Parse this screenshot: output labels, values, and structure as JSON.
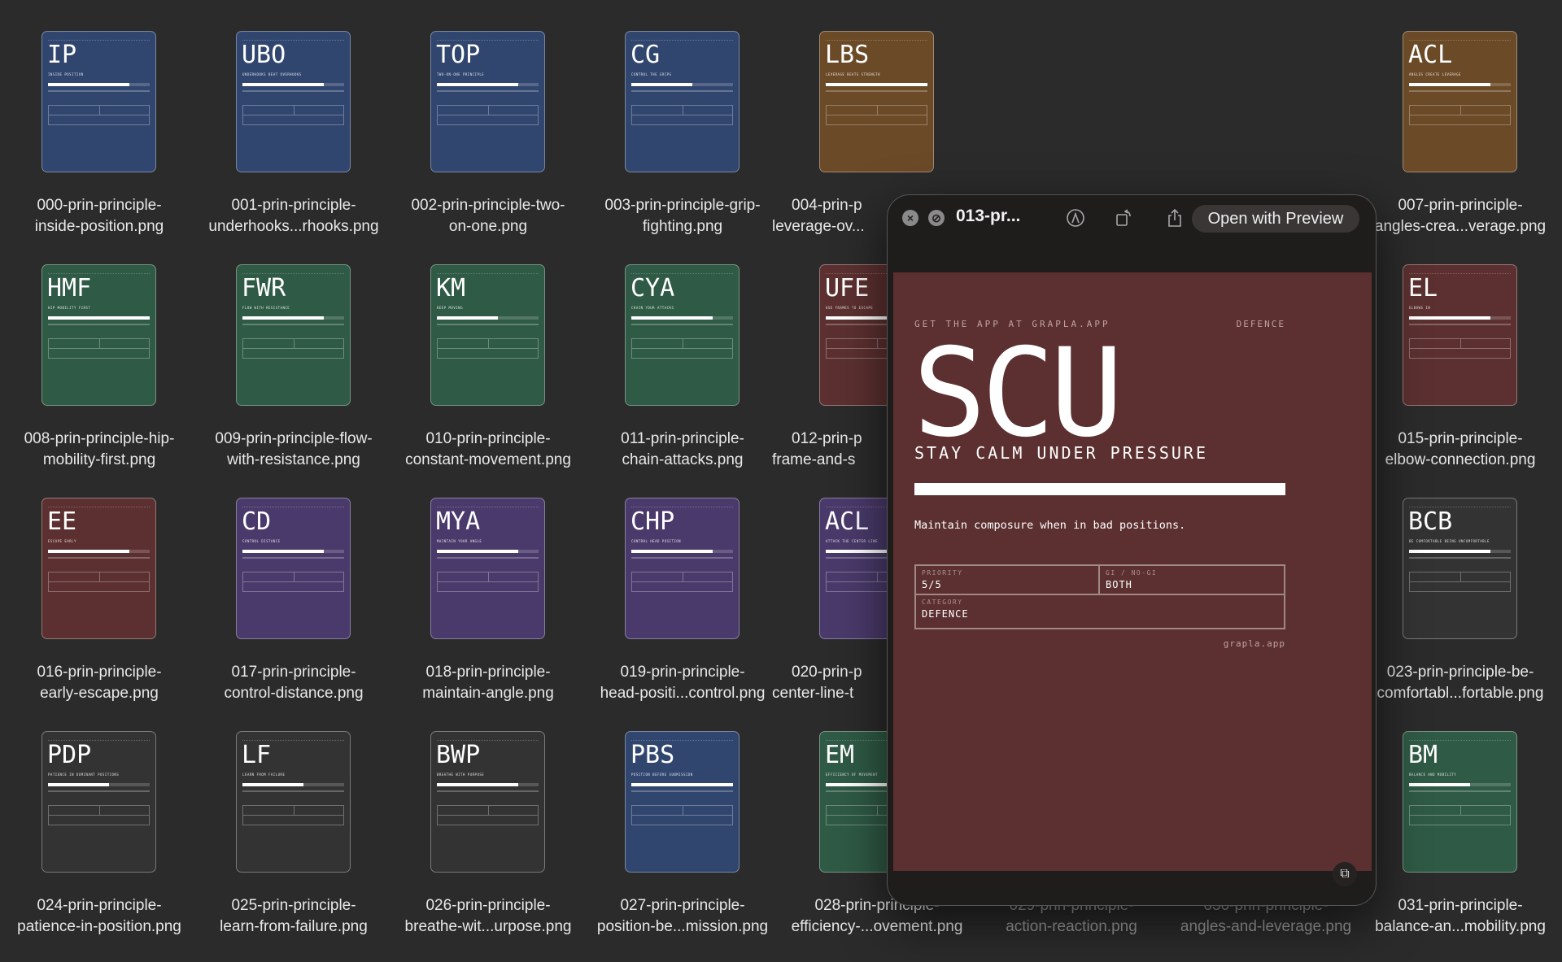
{
  "files": [
    {
      "col": 0,
      "row": 0,
      "abbr": "IP",
      "subtitle": "INSIDE POSITION",
      "color": "#31466f",
      "fill": 0.8,
      "label": [
        "000-prin-principle-",
        "inside-position.png"
      ]
    },
    {
      "col": 1,
      "row": 0,
      "abbr": "UBO",
      "subtitle": "UNDERHOOKS BEAT OVERHOOKS",
      "color": "#31466f",
      "fill": 0.8,
      "label": [
        "001-prin-principle-",
        "underhooks...rhooks.png"
      ]
    },
    {
      "col": 2,
      "row": 0,
      "abbr": "TOP",
      "subtitle": "TWO-ON-ONE PRINCIPLE",
      "color": "#31466f",
      "fill": 0.8,
      "label": [
        "002-prin-principle-two-",
        "on-one.png"
      ]
    },
    {
      "col": 3,
      "row": 0,
      "abbr": "CG",
      "subtitle": "CONTROL THE GRIPS",
      "color": "#31466f",
      "fill": 0.6,
      "label": [
        "003-prin-principle-grip-",
        "fighting.png"
      ]
    },
    {
      "col": 4,
      "row": 0,
      "abbr": "LBS",
      "subtitle": "LEVERAGE BEATS STRENGTH",
      "color": "#6b4a28",
      "fill": 1.0,
      "label": [
        "004-prin-p",
        "leverage-ov..."
      ],
      "clipped": true
    },
    {
      "col": 7,
      "row": 0,
      "abbr": "ACL",
      "subtitle": "ANGLES CREATE LEVERAGE",
      "color": "#6b4a28",
      "fill": 0.8,
      "label": [
        "007-prin-principle-",
        "angles-crea...verage.png"
      ]
    },
    {
      "col": 0,
      "row": 1,
      "abbr": "HMF",
      "subtitle": "HIP MOBILITY FIRST",
      "color": "#2f5a45",
      "fill": 1.0,
      "label": [
        "008-prin-principle-hip-",
        "mobility-first.png"
      ]
    },
    {
      "col": 1,
      "row": 1,
      "abbr": "FWR",
      "subtitle": "FLOW WITH RESISTANCE",
      "color": "#2f5a45",
      "fill": 0.8,
      "label": [
        "009-prin-principle-flow-",
        "with-resistance.png"
      ]
    },
    {
      "col": 2,
      "row": 1,
      "abbr": "KM",
      "subtitle": "KEEP MOVING",
      "color": "#2f5a45",
      "fill": 0.6,
      "label": [
        "010-prin-principle-",
        "constant-movement.png"
      ]
    },
    {
      "col": 3,
      "row": 1,
      "abbr": "CYA",
      "subtitle": "CHAIN YOUR ATTACKS",
      "color": "#2f5a45",
      "fill": 0.8,
      "label": [
        "011-prin-principle-",
        "chain-attacks.png"
      ]
    },
    {
      "col": 4,
      "row": 1,
      "abbr": "UFE",
      "subtitle": "USE FRAMES TO ESCAPE",
      "color": "#5c3030",
      "fill": 1.0,
      "label": [
        "012-prin-p",
        "frame-and-s"
      ],
      "clipped": true
    },
    {
      "col": 7,
      "row": 1,
      "abbr": "EL",
      "subtitle": "ELBOWS IN",
      "color": "#5c3030",
      "fill": 0.8,
      "label": [
        "015-prin-principle-",
        "elbow-connection.png"
      ]
    },
    {
      "col": 0,
      "row": 2,
      "abbr": "EE",
      "subtitle": "ESCAPE EARLY",
      "color": "#5c3030",
      "fill": 0.8,
      "label": [
        "016-prin-principle-",
        "early-escape.png"
      ]
    },
    {
      "col": 1,
      "row": 2,
      "abbr": "CD",
      "subtitle": "CONTROL DISTANCE",
      "color": "#4a3a6b",
      "fill": 0.8,
      "label": [
        "017-prin-principle-",
        "control-distance.png"
      ]
    },
    {
      "col": 2,
      "row": 2,
      "abbr": "MYA",
      "subtitle": "MAINTAIN YOUR ANGLE",
      "color": "#4a3a6b",
      "fill": 0.8,
      "label": [
        "018-prin-principle-",
        "maintain-angle.png"
      ]
    },
    {
      "col": 3,
      "row": 2,
      "abbr": "CHP",
      "subtitle": "CONTROL HEAD POSITION",
      "color": "#4a3a6b",
      "fill": 0.8,
      "label": [
        "019-prin-principle-",
        "head-positi...control.png"
      ]
    },
    {
      "col": 4,
      "row": 2,
      "abbr": "ACL",
      "subtitle": "ATTACK THE CENTER LINE",
      "color": "#4a3a6b",
      "fill": 1.0,
      "label": [
        "020-prin-p",
        "center-line-t"
      ],
      "clipped": true
    },
    {
      "col": 7,
      "row": 2,
      "abbr": "BCB",
      "subtitle": "BE COMFORTABLE BEING UNCOMFORTABLE",
      "color": "#333333",
      "fill": 0.8,
      "label": [
        "023-prin-principle-be-",
        "comfortabl...fortable.png"
      ]
    },
    {
      "col": 0,
      "row": 3,
      "abbr": "PDP",
      "subtitle": "PATIENCE IN DOMINANT POSITIONS",
      "color": "#333333",
      "fill": 0.6,
      "label": [
        "024-prin-principle-",
        "patience-in-position.png"
      ]
    },
    {
      "col": 1,
      "row": 3,
      "abbr": "LF",
      "subtitle": "LEARN FROM FAILURE",
      "color": "#333333",
      "fill": 0.6,
      "label": [
        "025-prin-principle-",
        "learn-from-failure.png"
      ]
    },
    {
      "col": 2,
      "row": 3,
      "abbr": "BWP",
      "subtitle": "BREATHE WITH PURPOSE",
      "color": "#333333",
      "fill": 0.8,
      "label": [
        "026-prin-principle-",
        "breathe-wit...urpose.png"
      ]
    },
    {
      "col": 3,
      "row": 3,
      "abbr": "PBS",
      "subtitle": "POSITION BEFORE SUBMISSION",
      "color": "#31466f",
      "fill": 1.0,
      "label": [
        "027-prin-principle-",
        "position-be...mission.png"
      ]
    },
    {
      "col": 4,
      "row": 3,
      "abbr": "EM",
      "subtitle": "EFFICIENCY OF MOVEMENT",
      "color": "#2f5a45",
      "fill": 1.0,
      "label": [
        "028-prin-principle-",
        "efficiency-...ovement.png"
      ]
    },
    {
      "col": 5,
      "row": 3,
      "label": [
        "029-prin-principle-",
        "action-reaction.png"
      ],
      "dim": true
    },
    {
      "col": 6,
      "row": 3,
      "label": [
        "030-prin-principle-",
        "angles-and-leverage.png"
      ],
      "dim": true
    },
    {
      "col": 7,
      "row": 3,
      "abbr": "BM",
      "subtitle": "BALANCE AND MOBILITY",
      "color": "#2f5a45",
      "fill": 0.6,
      "label": [
        "031-prin-principle-",
        "balance-an...mobility.png"
      ]
    }
  ],
  "quicklook": {
    "title": "013-pr...",
    "open_with": "Open with Preview",
    "icons": [
      "close-icon",
      "fullscreen-icon",
      "markup-icon",
      "rotate-icon",
      "share-icon",
      "live-text-icon"
    ],
    "card": {
      "color": "#5c3030",
      "top_left": "GET THE APP AT GRAPLA.APP",
      "top_right": "DEFENCE",
      "abbr": "SCU",
      "subtitle": "STAY CALM UNDER PRESSURE",
      "fill": 1.0,
      "description": "Maintain composure when in bad positions.",
      "priority_label": "PRIORITY",
      "priority_value": "5/5",
      "gi_label": "GI / NO-GI",
      "gi_value": "BOTH",
      "category_label": "CATEGORY",
      "category_value": "DEFENCE",
      "footer": "grapla.app"
    }
  }
}
